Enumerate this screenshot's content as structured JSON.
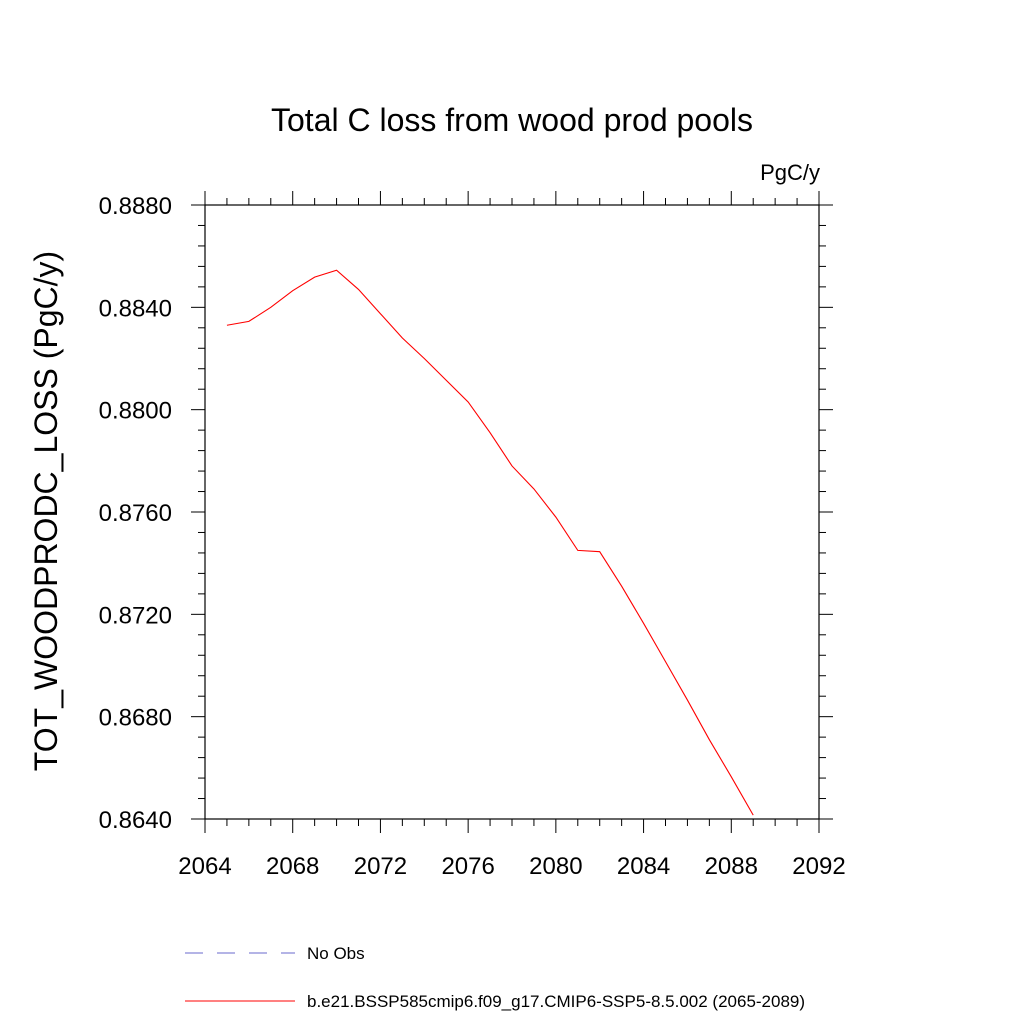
{
  "chart_data": {
    "type": "line",
    "title": "Total C loss from wood prod pools",
    "units": "PgC/y",
    "ylabel": "TOT_WOODPRODC_LOSS  (PgC/y)",
    "xlabel": "",
    "xlim": [
      2064,
      2092
    ],
    "ylim": [
      0.864,
      0.888
    ],
    "x_ticks": [
      2064,
      2068,
      2072,
      2076,
      2080,
      2084,
      2088,
      2092
    ],
    "x_tick_labels": [
      "2064",
      "2068",
      "2072",
      "2076",
      "2080",
      "2084",
      "2088",
      "2092"
    ],
    "y_ticks": [
      0.864,
      0.868,
      0.872,
      0.876,
      0.88,
      0.884,
      0.888
    ],
    "y_tick_labels": [
      "0.8640",
      "0.8680",
      "0.8720",
      "0.8760",
      "0.8800",
      "0.8840",
      "0.8880"
    ],
    "grid": false,
    "legend_position": "bottom",
    "series": [
      {
        "name": "No Obs",
        "style": "dashed",
        "color": "#6a6acd",
        "x": [],
        "y": []
      },
      {
        "name": "b.e21.BSSP585cmip6.f09_g17.CMIP6-SSP5-8.5.002 (2065-2089)",
        "style": "solid",
        "color": "#ff0000",
        "x": [
          2065,
          2066,
          2067,
          2068,
          2069,
          2070,
          2071,
          2072,
          2073,
          2074,
          2075,
          2076,
          2077,
          2078,
          2079,
          2080,
          2081,
          2082,
          2083,
          2084,
          2085,
          2086,
          2087,
          2088,
          2089
        ],
        "y": [
          0.8833,
          0.88345,
          0.884,
          0.88465,
          0.88518,
          0.88545,
          0.8847,
          0.88375,
          0.8828,
          0.882,
          0.88115,
          0.8803,
          0.8791,
          0.8778,
          0.8769,
          0.8758,
          0.8745,
          0.87445,
          0.8731,
          0.87165,
          0.87015,
          0.86865,
          0.8671,
          0.86565,
          0.86415
        ]
      }
    ]
  }
}
